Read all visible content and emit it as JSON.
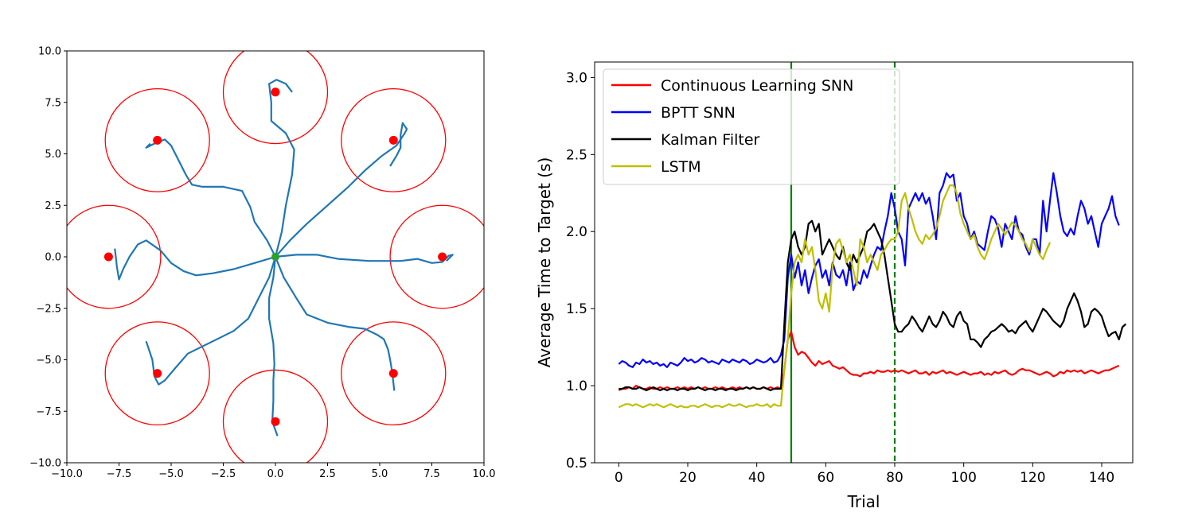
{
  "chart_data": [
    {
      "type": "scatter",
      "title": "",
      "xlabel": "",
      "ylabel": "",
      "xlim": [
        -10,
        10
      ],
      "ylim": [
        -10,
        10
      ],
      "grid": false,
      "xticks": [
        -10,
        -7.5,
        -5,
        -2.5,
        0,
        2.5,
        5,
        7.5,
        10
      ],
      "yticks": [
        -10,
        -7.5,
        -5,
        -2.5,
        0,
        2.5,
        5,
        7.5,
        10
      ],
      "xtick_labels": [
        "−10.0",
        "−7.5",
        "−5.0",
        "−2.5",
        "0.0",
        "2.5",
        "5.0",
        "7.5",
        "10.0"
      ],
      "ytick_labels": [
        "−10.0",
        "−7.5",
        "−5.0",
        "−2.5",
        "0.0",
        "2.5",
        "5.0",
        "7.5",
        "10.0"
      ],
      "target_radius": 2.5,
      "targets": [
        [
          0,
          8
        ],
        [
          5.66,
          5.66
        ],
        [
          8,
          0
        ],
        [
          5.66,
          -5.66
        ],
        [
          0,
          -8
        ],
        [
          -5.66,
          -5.66
        ],
        [
          -8,
          0
        ],
        [
          -5.66,
          5.66
        ]
      ],
      "origin": [
        0,
        0
      ],
      "colors": {
        "target": "#ff0000",
        "origin": "#2ca02c",
        "trajectory": "#1f77b4"
      },
      "trajectories": [
        [
          [
            0,
            0
          ],
          [
            0.3,
            1.2
          ],
          [
            0.5,
            2.5
          ],
          [
            0.8,
            4
          ],
          [
            0.9,
            5.2
          ],
          [
            0.5,
            6
          ],
          [
            -0.2,
            6.6
          ],
          [
            -0.2,
            7.5
          ],
          [
            -0.3,
            8.4
          ],
          [
            0.05,
            8.6
          ],
          [
            0.5,
            8.4
          ],
          [
            0.8,
            8.0
          ]
        ],
        [
          [
            0,
            0
          ],
          [
            0.7,
            0.8
          ],
          [
            1.5,
            1.6
          ],
          [
            2.5,
            2.5
          ],
          [
            3.5,
            3.4
          ],
          [
            4.3,
            4.2
          ],
          [
            5.1,
            4.9
          ],
          [
            5.8,
            5.4
          ],
          [
            6.2,
            6.0
          ],
          [
            6.3,
            6.2
          ],
          [
            6.1,
            6.5
          ],
          [
            6.0,
            5.9
          ],
          [
            6.0,
            5.3
          ],
          [
            5.8,
            4.9
          ],
          [
            5.5,
            4.4
          ]
        ],
        [
          [
            0,
            0
          ],
          [
            1,
            0.1
          ],
          [
            2,
            0.1
          ],
          [
            3,
            -0.1
          ],
          [
            4.5,
            -0.2
          ],
          [
            6,
            -0.2
          ],
          [
            6.8,
            -0.1
          ],
          [
            7.5,
            -0.3
          ],
          [
            8.0,
            -0.25
          ],
          [
            8.3,
            0.05
          ],
          [
            8.5,
            0.1
          ],
          [
            8.2,
            -0.2
          ]
        ],
        [
          [
            0,
            0
          ],
          [
            0.4,
            -1
          ],
          [
            1.0,
            -2
          ],
          [
            1.5,
            -2.8
          ],
          [
            2.5,
            -3.2
          ],
          [
            3.5,
            -3.4
          ],
          [
            4.3,
            -3.5
          ],
          [
            4.9,
            -3.8
          ],
          [
            5.2,
            -4.0
          ],
          [
            5.4,
            -4.5
          ],
          [
            5.5,
            -5.0
          ],
          [
            5.6,
            -5.6
          ],
          [
            5.7,
            -6.5
          ]
        ],
        [
          [
            0,
            0
          ],
          [
            -0.1,
            -1
          ],
          [
            -0.3,
            -2
          ],
          [
            -0.3,
            -3
          ],
          [
            -0.1,
            -4.2
          ],
          [
            -0.05,
            -5.2
          ],
          [
            -0.1,
            -6
          ],
          [
            -0.1,
            -7
          ],
          [
            -0.15,
            -8
          ],
          [
            0.1,
            -8.7
          ]
        ],
        [
          [
            0,
            0
          ],
          [
            -0.3,
            -1
          ],
          [
            -0.8,
            -2
          ],
          [
            -1.3,
            -3
          ],
          [
            -2.0,
            -3.6
          ],
          [
            -3,
            -4.1
          ],
          [
            -4.2,
            -4.7
          ],
          [
            -4.8,
            -5.4
          ],
          [
            -5.3,
            -6.0
          ],
          [
            -5.6,
            -6.2
          ],
          [
            -5.8,
            -5.8
          ],
          [
            -5.9,
            -5.0
          ],
          [
            -6.2,
            -4.1
          ]
        ],
        [
          [
            0,
            0
          ],
          [
            -1,
            -0.3
          ],
          [
            -2,
            -0.6
          ],
          [
            -3,
            -0.8
          ],
          [
            -3.8,
            -0.9
          ],
          [
            -4.4,
            -0.7
          ],
          [
            -5.0,
            -0.3
          ],
          [
            -5.5,
            0.3
          ],
          [
            -6.2,
            0.8
          ],
          [
            -6.6,
            0.6
          ],
          [
            -7.0,
            0.0
          ],
          [
            -7.3,
            -0.6
          ],
          [
            -7.5,
            -1.1
          ],
          [
            -7.6,
            -0.5
          ],
          [
            -7.7,
            0.4
          ]
        ],
        [
          [
            0,
            0
          ],
          [
            -0.4,
            0.8
          ],
          [
            -1.0,
            1.7
          ],
          [
            -1.2,
            2.4
          ],
          [
            -1.6,
            3.2
          ],
          [
            -2.5,
            3.4
          ],
          [
            -3.5,
            3.4
          ],
          [
            -4,
            3.5
          ],
          [
            -4.3,
            4
          ],
          [
            -4.7,
            4.8
          ],
          [
            -5.0,
            5.4
          ],
          [
            -5.3,
            5.7
          ],
          [
            -5.8,
            5.5
          ],
          [
            -6.2,
            5.3
          ],
          [
            -6.0,
            5.5
          ]
        ]
      ]
    },
    {
      "type": "line",
      "title": "",
      "xlabel": "Trial",
      "ylabel": "Average Time to Target (s)",
      "xlim": [
        -7,
        149
      ],
      "ylim": [
        0.5,
        3.1
      ],
      "xticks": [
        0,
        20,
        40,
        60,
        80,
        100,
        120,
        140
      ],
      "yticks": [
        0.5,
        1.0,
        1.5,
        2.0,
        2.5,
        3.0
      ],
      "xtick_labels": [
        "0",
        "20",
        "40",
        "60",
        "80",
        "100",
        "120",
        "140"
      ],
      "ytick_labels": [
        "0.5",
        "1.0",
        "1.5",
        "2.0",
        "2.5",
        "3.0"
      ],
      "grid": false,
      "legend_position": "upper-left",
      "vlines": [
        {
          "x": 50,
          "style": "solid",
          "color": "#008000"
        },
        {
          "x": 80,
          "style": "dashed",
          "color": "#008000"
        }
      ],
      "series": [
        {
          "name": "Continuous Learning SNN",
          "color": "#ff0000",
          "x_start": 0,
          "values": [
            0.97,
            0.98,
            0.98,
            0.99,
            0.98,
            1.0,
            0.99,
            0.98,
            0.98,
            0.99,
            0.98,
            0.98,
            0.99,
            0.98,
            0.99,
            0.98,
            0.98,
            0.99,
            0.98,
            0.99,
            0.98,
            0.99,
            0.98,
            0.99,
            0.98,
            0.99,
            0.98,
            0.98,
            0.99,
            0.98,
            0.99,
            0.98,
            0.98,
            0.99,
            0.98,
            0.99,
            0.98,
            0.99,
            0.98,
            0.99,
            0.98,
            0.98,
            0.99,
            0.98,
            0.99,
            0.98,
            0.99,
            0.98,
            1.1,
            1.3,
            1.35,
            1.25,
            1.2,
            1.22,
            1.21,
            1.18,
            1.15,
            1.13,
            1.16,
            1.14,
            1.15,
            1.16,
            1.13,
            1.12,
            1.11,
            1.12,
            1.1,
            1.08,
            1.07,
            1.07,
            1.06,
            1.08,
            1.08,
            1.09,
            1.08,
            1.1,
            1.09,
            1.09,
            1.1,
            1.09,
            1.1,
            1.09,
            1.1,
            1.09,
            1.08,
            1.09,
            1.1,
            1.08,
            1.08,
            1.09,
            1.07,
            1.09,
            1.08,
            1.09,
            1.1,
            1.08,
            1.09,
            1.08,
            1.07,
            1.08,
            1.09,
            1.08,
            1.07,
            1.08,
            1.08,
            1.09,
            1.07,
            1.08,
            1.07,
            1.09,
            1.08,
            1.09,
            1.1,
            1.08,
            1.07,
            1.08,
            1.1,
            1.11,
            1.1,
            1.1,
            1.09,
            1.08,
            1.07,
            1.08,
            1.09,
            1.08,
            1.06,
            1.07,
            1.09,
            1.08,
            1.1,
            1.09,
            1.1,
            1.09,
            1.1,
            1.08,
            1.09,
            1.1,
            1.09,
            1.08,
            1.09,
            1.1,
            1.1,
            1.11,
            1.12,
            1.13
          ]
        },
        {
          "name": "BPTT SNN",
          "color": "#0000ff",
          "x_start": 0,
          "values": [
            1.14,
            1.16,
            1.15,
            1.13,
            1.12,
            1.15,
            1.14,
            1.17,
            1.15,
            1.16,
            1.14,
            1.15,
            1.13,
            1.14,
            1.12,
            1.15,
            1.14,
            1.13,
            1.15,
            1.18,
            1.16,
            1.17,
            1.15,
            1.16,
            1.18,
            1.17,
            1.15,
            1.16,
            1.15,
            1.14,
            1.17,
            1.16,
            1.15,
            1.17,
            1.16,
            1.15,
            1.17,
            1.16,
            1.14,
            1.15,
            1.17,
            1.16,
            1.15,
            1.16,
            1.18,
            1.15,
            1.16,
            1.2,
            1.3,
            1.7,
            1.85,
            1.7,
            1.8,
            1.65,
            1.75,
            1.6,
            1.7,
            1.78,
            1.82,
            1.7,
            1.75,
            1.65,
            1.8,
            1.72,
            1.7,
            1.75,
            1.65,
            1.8,
            1.62,
            1.68,
            1.66,
            1.75,
            1.7,
            1.78,
            1.85,
            1.9,
            1.88,
            2.0,
            2.1,
            2.25,
            2.15,
            2.0,
            1.95,
            1.78,
            2.15,
            2.2,
            2.25,
            2.2,
            2.25,
            2.18,
            2.22,
            2.1,
            1.95,
            2.25,
            2.3,
            2.38,
            2.35,
            2.37,
            2.2,
            2.25,
            2.1,
            2.05,
            1.95,
            2.0,
            1.92,
            1.9,
            1.88,
            2.0,
            2.1,
            2.08,
            2.02,
            1.9,
            2.05,
            2.0,
            1.95,
            2.1,
            2.0,
            1.98,
            1.9,
            1.85,
            1.95,
            1.95,
            1.85,
            2.2,
            2.0,
            2.2,
            2.38,
            2.25,
            2.1,
            2.0,
            1.97,
            2.02,
            1.98,
            2.1,
            2.2,
            2.15,
            2.05,
            2.1,
            2.0,
            1.9,
            2.05,
            2.1,
            2.15,
            2.23,
            2.1,
            2.04
          ]
        },
        {
          "name": "Kalman Filter",
          "color": "#000000",
          "x_start": 0,
          "values": [
            0.98,
            0.98,
            0.99,
            0.99,
            0.98,
            0.98,
            0.99,
            0.98,
            0.97,
            0.98,
            0.99,
            0.98,
            0.97,
            0.98,
            0.97,
            0.98,
            0.98,
            0.97,
            0.98,
            0.98,
            0.97,
            0.98,
            0.98,
            0.99,
            0.98,
            0.97,
            0.98,
            0.98,
            0.97,
            0.98,
            0.98,
            0.97,
            0.98,
            0.98,
            0.97,
            0.98,
            0.98,
            0.99,
            0.98,
            0.99,
            0.98,
            0.98,
            0.99,
            0.98,
            0.97,
            0.98,
            0.98,
            0.98,
            1.4,
            1.8,
            1.95,
            2.0,
            1.9,
            1.85,
            1.9,
            2.05,
            2.07,
            2.0,
            2.05,
            1.85,
            1.9,
            1.95,
            1.9,
            1.85,
            1.82,
            1.9,
            1.8,
            1.75,
            1.85,
            1.8,
            1.85,
            1.9,
            2.0,
            2.02,
            2.05,
            2.0,
            1.95,
            1.85,
            1.7,
            1.55,
            1.4,
            1.35,
            1.35,
            1.38,
            1.4,
            1.45,
            1.42,
            1.38,
            1.35,
            1.4,
            1.45,
            1.4,
            1.38,
            1.42,
            1.48,
            1.45,
            1.4,
            1.38,
            1.45,
            1.48,
            1.42,
            1.4,
            1.3,
            1.3,
            1.28,
            1.25,
            1.3,
            1.32,
            1.35,
            1.36,
            1.38,
            1.4,
            1.38,
            1.35,
            1.36,
            1.34,
            1.38,
            1.4,
            1.42,
            1.38,
            1.35,
            1.4,
            1.45,
            1.5,
            1.48,
            1.45,
            1.42,
            1.4,
            1.38,
            1.42,
            1.5,
            1.55,
            1.6,
            1.55,
            1.48,
            1.38,
            1.4,
            1.48,
            1.5,
            1.48,
            1.45,
            1.38,
            1.32,
            1.34,
            1.35,
            1.3,
            1.38,
            1.4
          ]
        },
        {
          "name": "LSTM",
          "color": "#bfbf00",
          "x_start": 0,
          "values": [
            0.86,
            0.87,
            0.88,
            0.88,
            0.87,
            0.88,
            0.87,
            0.86,
            0.87,
            0.88,
            0.87,
            0.88,
            0.87,
            0.86,
            0.87,
            0.88,
            0.87,
            0.86,
            0.87,
            0.86,
            0.86,
            0.87,
            0.87,
            0.86,
            0.87,
            0.88,
            0.87,
            0.86,
            0.87,
            0.87,
            0.86,
            0.87,
            0.88,
            0.87,
            0.87,
            0.88,
            0.87,
            0.86,
            0.87,
            0.87,
            0.88,
            0.87,
            0.87,
            0.88,
            0.86,
            0.88,
            0.87,
            0.87,
            1.1,
            1.3,
            1.6,
            1.8,
            1.85,
            1.8,
            1.95,
            1.85,
            1.9,
            1.75,
            1.55,
            1.5,
            1.6,
            1.48,
            1.78,
            1.92,
            1.95,
            1.88,
            1.8,
            1.85,
            1.75,
            1.65,
            1.95,
            1.9,
            1.8,
            1.85,
            1.8,
            1.75,
            1.85,
            1.88,
            1.92,
            1.95,
            1.95,
            2.0,
            2.2,
            2.25,
            2.15,
            2.08,
            2.0,
            1.95,
            1.92,
            1.98,
            1.95,
            1.98,
            2.02,
            2.1,
            2.2,
            2.25,
            2.3,
            2.3,
            2.25,
            2.12,
            2.05,
            2.0,
            1.95,
            1.98,
            1.9,
            1.85,
            1.82,
            1.88,
            1.95,
            2.0,
            2.05,
            2.02,
            1.98,
            2.02,
            2.06,
            2.04,
            2.0,
            1.95,
            1.92,
            1.87,
            1.95,
            1.9,
            1.85,
            1.82,
            1.88,
            1.93
          ]
        }
      ]
    }
  ]
}
